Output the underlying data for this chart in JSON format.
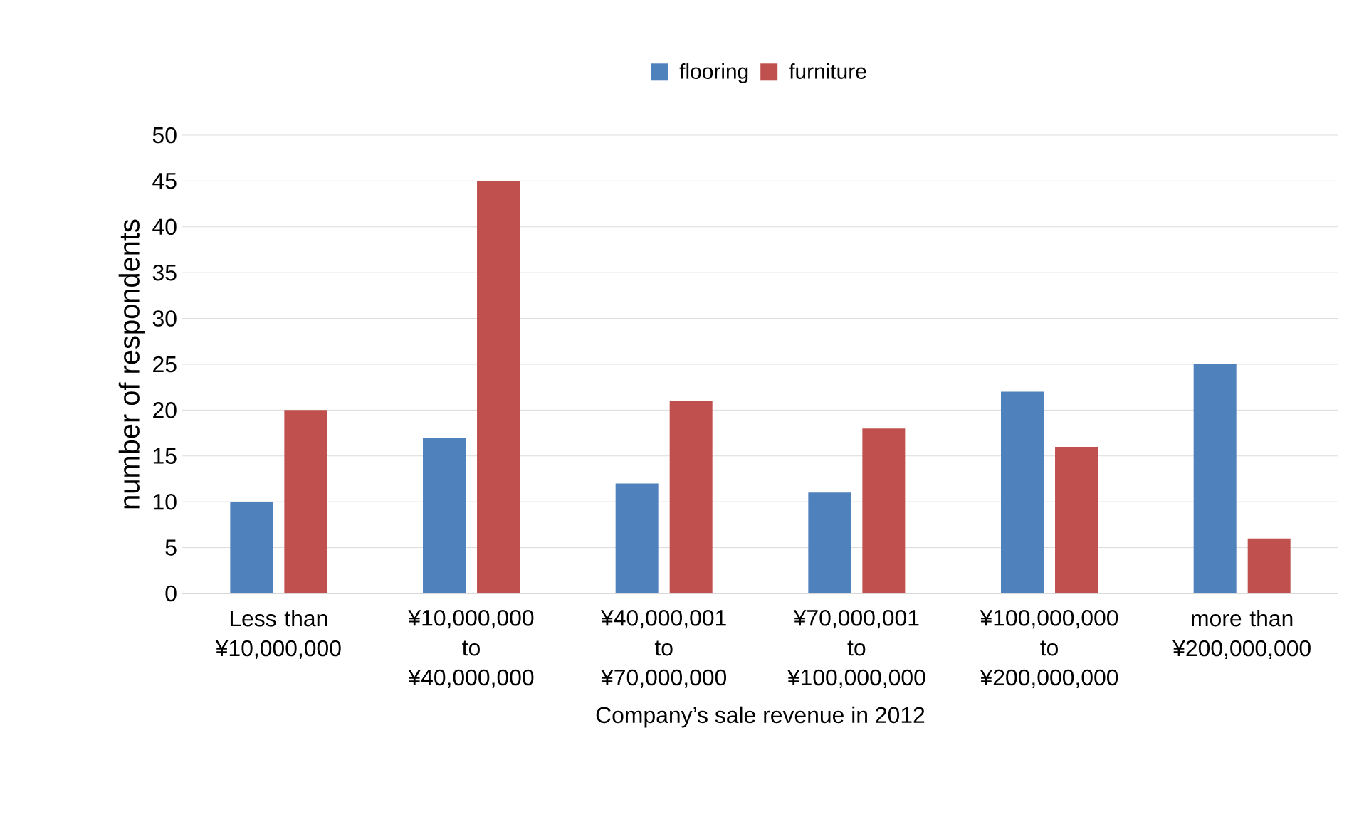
{
  "chart_data": {
    "type": "bar",
    "xlabel": "Company’s sale revenue in 2012",
    "ylabel": "number of respondents",
    "categories": [
      "Less than ¥10,000,000",
      "¥10,000,000 to ¥40,000,000",
      "¥40,000,001 to ¥70,000,000",
      "¥70,000,001 to ¥100,000,000",
      "¥100,000,000 to ¥200,000,000",
      "more than ¥200,000,000"
    ],
    "series": [
      {
        "name": "flooring",
        "color": "#4f81bd",
        "values": [
          10,
          17,
          12,
          11,
          22,
          25
        ]
      },
      {
        "name": "furniture",
        "color": "#c0504d",
        "values": [
          20,
          45,
          21,
          18,
          16,
          6
        ]
      }
    ],
    "ylim": [
      0,
      50
    ],
    "yticks": [
      0,
      5,
      10,
      15,
      20,
      25,
      30,
      35,
      40,
      45,
      50
    ],
    "grid": "y",
    "legend": "top"
  }
}
